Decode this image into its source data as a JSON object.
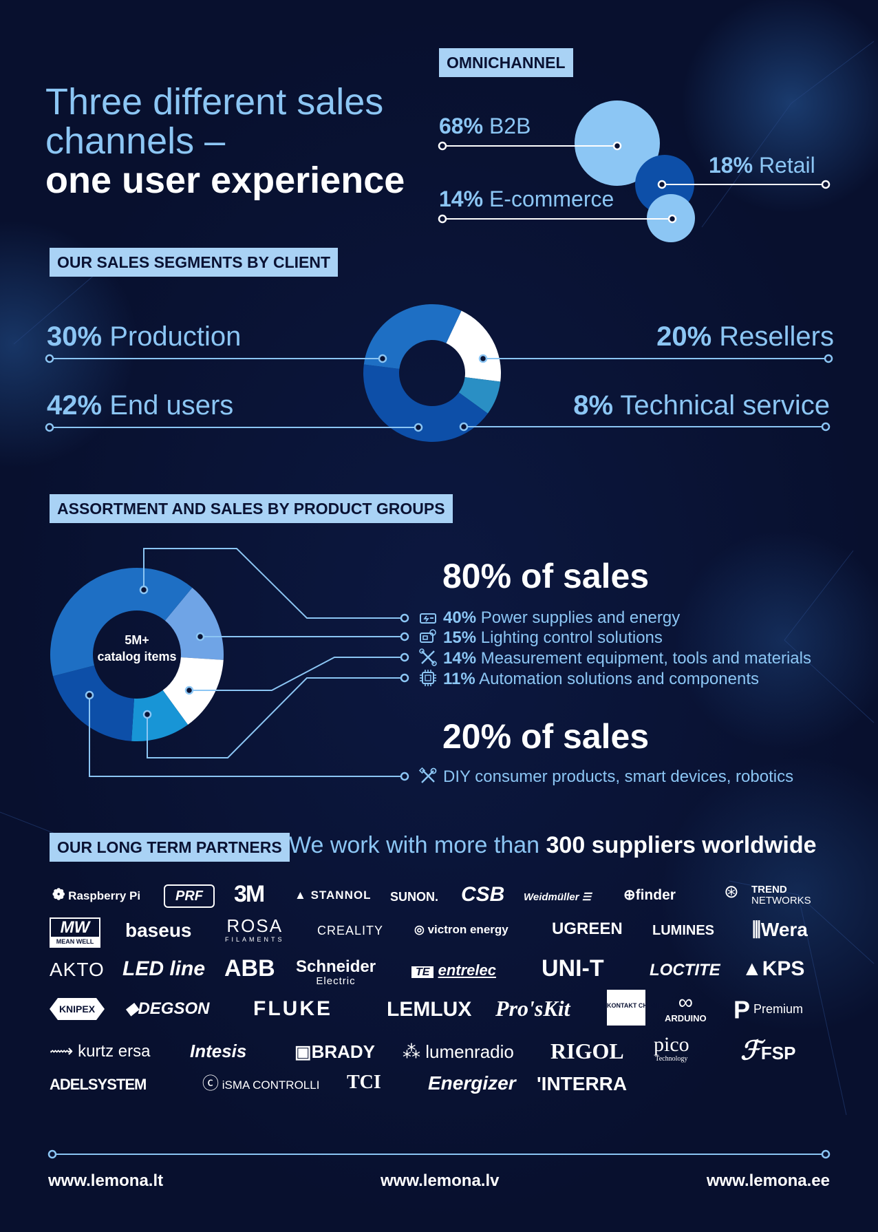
{
  "headline": {
    "line1": "Three different sales",
    "line2": "channels –",
    "line3": "one user experience"
  },
  "omnichannel": {
    "tag": "OMNICHANNEL",
    "items": [
      {
        "pct": "68%",
        "label": "B2B"
      },
      {
        "pct": "18%",
        "label": "Retail"
      },
      {
        "pct": "14%",
        "label": "E-commerce"
      }
    ],
    "colors": [
      "#8cc6f4",
      "#0d4fa8",
      "#8cc6f4"
    ]
  },
  "segments": {
    "tag": "OUR SALES SEGMENTS BY CLIENT",
    "items": [
      {
        "pct": "30%",
        "label": "Production"
      },
      {
        "pct": "42%",
        "label": "End users"
      },
      {
        "pct": "20%",
        "label": "Resellers"
      },
      {
        "pct": "8%",
        "label": "Technical service"
      }
    ]
  },
  "assortment": {
    "tag": "ASSORTMENT AND SALES BY PRODUCT GROUPS",
    "center_line1": "5M+",
    "center_line2": "catalog items",
    "sales80": "80% of sales",
    "sales20": "20% of sales",
    "groups": [
      {
        "pct": "40%",
        "label": "Power supplies and energy",
        "icon": "power-supply-icon"
      },
      {
        "pct": "15%",
        "label": "Lighting control solutions",
        "icon": "lighting-control-icon"
      },
      {
        "pct": "14%",
        "label": "Measurement equipment, tools and materials",
        "icon": "tools-icon"
      },
      {
        "pct": "11%",
        "label": "Automation solutions and components",
        "icon": "chip-icon"
      }
    ],
    "diy": {
      "label": "DIY consumer products, smart devices, robotics",
      "icon": "wrench-screwdriver-icon"
    }
  },
  "partners": {
    "tag": "OUR LONG TERM PARTNERS",
    "text_pre": "We work with more than",
    "text_bold": "300 suppliers worldwide",
    "logos_row1": [
      "Raspberry Pi",
      "PRF",
      "3M",
      "STANNOL",
      "SUNON.",
      "CSB",
      "Weidmüller",
      "finder",
      "TREND",
      "NETWORKS"
    ],
    "logos_row2": [
      "MW",
      "MEAN WELL",
      "baseus",
      "ROSA",
      "FILAMENTS",
      "CREALITY",
      "victron energy",
      "UGREEN",
      "LUMINES",
      "Wera"
    ],
    "logos_row3": [
      "AKTO",
      "LED line",
      "ABB",
      "Schneider",
      "Electric",
      "entrelec",
      "UNI-T",
      "LOCTITE",
      "KPS"
    ],
    "logos_row4": [
      "KNIPEX",
      "DEGSON",
      "FLUKE",
      "LEMLUX",
      "Pro'sKit",
      "KONTAKT CHEMIE",
      "ARDUINO",
      "Premium"
    ],
    "logos_row5": [
      "kurtz ersa",
      "Intesis",
      "BRADY",
      "lumenradio",
      "RIGOL",
      "pico",
      "Technology",
      "FSP"
    ],
    "logos_row6": [
      "ADELSYSTEM",
      "iSMA CONTROLLI",
      "TCI",
      "Energizer",
      "'INTERRA"
    ]
  },
  "footer": {
    "url1": "www.lemona.lt",
    "url2": "www.lemona.lv",
    "url3": "www.lemona.ee"
  }
}
